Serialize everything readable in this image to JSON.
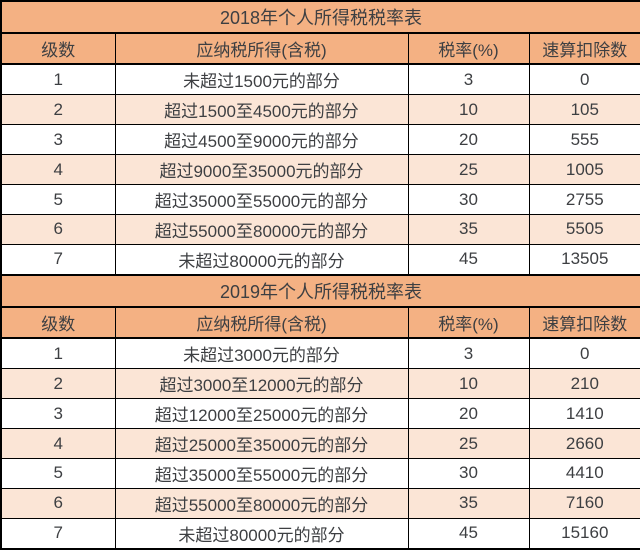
{
  "colors": {
    "title_header_fill": "#F4B183",
    "alt_row_fill": "#FBE5D6",
    "row_fill": "#FFFFFF",
    "border": "#000000",
    "text": "#3D3F42"
  },
  "chart_data": [
    {
      "type": "table",
      "title": "2018年个人所得税税率表",
      "columns": [
        "级数",
        "应纳税所得(含税)",
        "税率(%)",
        "速算扣除数"
      ],
      "rows": [
        [
          "1",
          "未超过1500元的部分",
          "3",
          "0"
        ],
        [
          "2",
          "超过1500至4500元的部分",
          "10",
          "105"
        ],
        [
          "3",
          "超过4500至9000元的部分",
          "20",
          "555"
        ],
        [
          "4",
          "超过9000至35000元的部分",
          "25",
          "1005"
        ],
        [
          "5",
          "超过35000至55000元的部分",
          "30",
          "2755"
        ],
        [
          "6",
          "超过55000至80000元的部分",
          "35",
          "5505"
        ],
        [
          "7",
          "未超过80000元的部分",
          "45",
          "13505"
        ]
      ],
      "trailing_empty_row": true
    },
    {
      "type": "table",
      "title": "2019年个人所得税税率表",
      "columns": [
        "级数",
        "应纳税所得(含税)",
        "税率(%)",
        "速算扣除数"
      ],
      "rows": [
        [
          "1",
          "未超过3000元的部分",
          "3",
          "0"
        ],
        [
          "2",
          "超过3000至12000元的部分",
          "10",
          "210"
        ],
        [
          "3",
          "超过12000至25000元的部分",
          "20",
          "1410"
        ],
        [
          "4",
          "超过25000至35000元的部分",
          "25",
          "2660"
        ],
        [
          "5",
          "超过35000至55000元的部分",
          "30",
          "4410"
        ],
        [
          "6",
          "超过55000至80000元的部分",
          "35",
          "7160"
        ],
        [
          "7",
          "未超过80000元的部分",
          "45",
          "15160"
        ]
      ],
      "trailing_empty_row": false
    }
  ]
}
